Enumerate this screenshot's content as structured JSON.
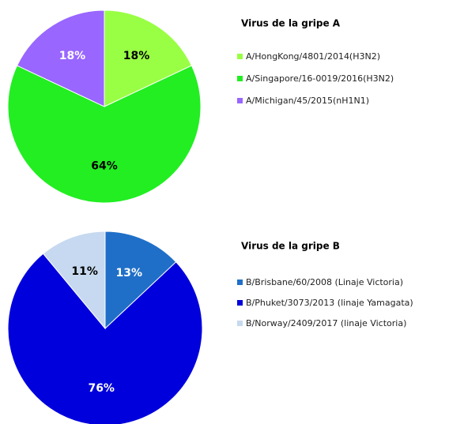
{
  "chart_data": [
    {
      "type": "pie",
      "title": "Virus de la gripe A",
      "categories": [
        "A/HongKong/4801/2014(H3N2)",
        "A/Singapore/16-0019/2016(H3N2)",
        "A/Michigan/45/2015(nH1N1)"
      ],
      "values": [
        18,
        64,
        18
      ],
      "value_labels": [
        "18%",
        "64%",
        "18%"
      ],
      "colors": [
        "#99ff44",
        "#22ee22",
        "#9966ff"
      ]
    },
    {
      "type": "pie",
      "title": "Virus de la gripe B",
      "categories": [
        "B/Brisbane/60/2008 (Linaje Victoria)",
        "B/Phuket/3073/2013 (linaje Yamagata)",
        "B/Norway/2409/2017 (linaje Victoria)"
      ],
      "values": [
        13,
        76,
        11
      ],
      "value_labels": [
        "13%",
        "76%",
        "11%"
      ],
      "colors": [
        "#1f6fc8",
        "#0000dd",
        "#c6d9f0"
      ]
    }
  ]
}
